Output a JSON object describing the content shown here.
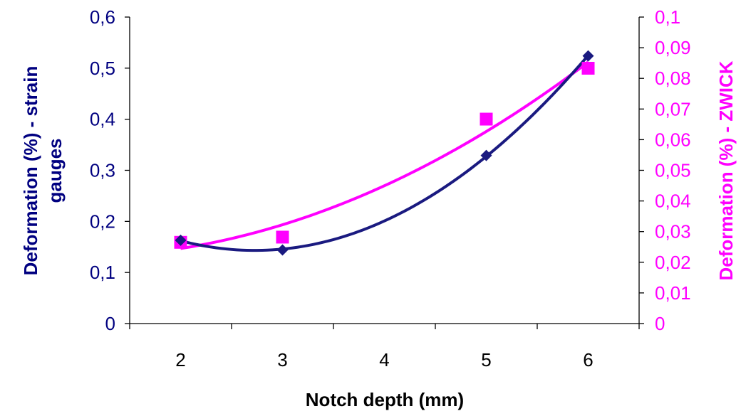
{
  "chart_data": {
    "type": "scatter",
    "categories": [
      "2",
      "3",
      "4",
      "5",
      "6"
    ],
    "x_ticks": [
      2,
      3,
      4,
      5,
      6
    ],
    "xlabel": "Notch depth (mm)",
    "ylabel_left": "Deformation (%) - strain gauges",
    "ylabel_right": "Deformation (%) - ZWICK",
    "ylim_left": [
      0,
      0.6
    ],
    "ylim_right": [
      0,
      0.1
    ],
    "left_ticks": [
      "0",
      "0,1",
      "0,2",
      "0,3",
      "0,4",
      "0,5",
      "0,6"
    ],
    "right_ticks": [
      "0",
      "0,01",
      "0,02",
      "0,03",
      "0,04",
      "0,05",
      "0,06",
      "0,07",
      "0,08",
      "0,09",
      "0,1"
    ],
    "grid": false,
    "series": [
      {
        "axis": "left",
        "marker": "diamond",
        "color": "#1A1A80",
        "trendline": "polynomial-2",
        "x": [
          2,
          3,
          5,
          6
        ],
        "y": [
          0.163,
          0.144,
          0.329,
          0.524
        ]
      },
      {
        "axis": "right",
        "marker": "square",
        "color": "#FF00FF",
        "trendline": "polynomial-2",
        "x": [
          2,
          3,
          5,
          6
        ],
        "y": [
          0.0265,
          0.0282,
          0.0667,
          0.0833
        ]
      }
    ]
  }
}
